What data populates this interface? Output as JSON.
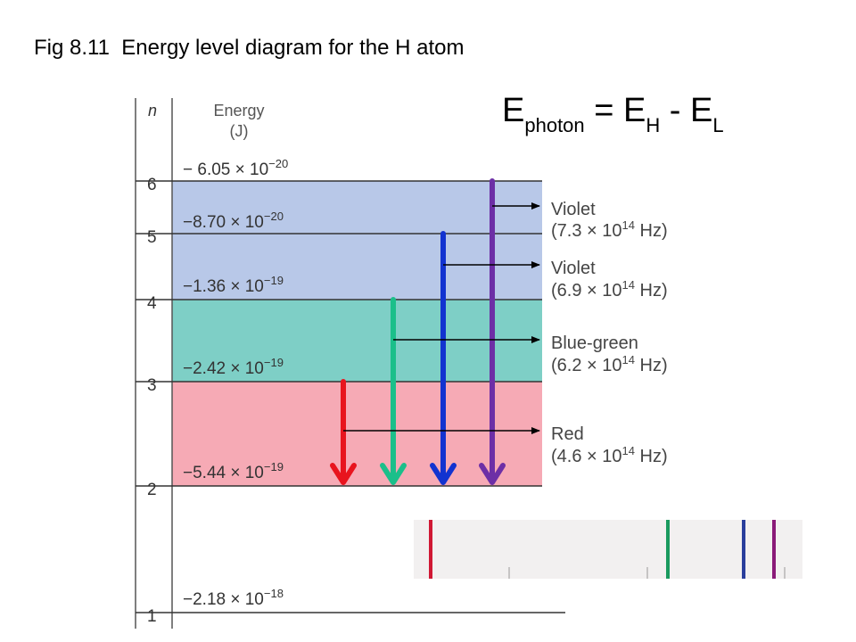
{
  "title": "Fig 8.11  Energy level diagram for the H atom",
  "equation": {
    "lhs": "E",
    "lhs_sub": "photon",
    "mid": " = E",
    "mid_sub": "H",
    "op": " - E",
    "rhs_sub": "L"
  },
  "axis": {
    "n_label": "n",
    "energy_label_line1": "Energy",
    "energy_label_line2": "(J)"
  },
  "levels": [
    {
      "n": "1",
      "energy": "−2.18 × 10",
      "exp": "−18"
    },
    {
      "n": "2",
      "energy": "−5.44 × 10",
      "exp": "−19"
    },
    {
      "n": "3",
      "energy": "−2.42 × 10",
      "exp": "−19"
    },
    {
      "n": "4",
      "energy": "−1.36 × 10",
      "exp": "−19"
    },
    {
      "n": "5",
      "energy": "−8.70 × 10",
      "exp": "−20"
    },
    {
      "n": "6",
      "energy": "− 6.05 × 10",
      "exp": "−20"
    }
  ],
  "transitions": [
    {
      "from": "3",
      "to": "2",
      "color_name": "Red",
      "freq": "(4.6 × 10",
      "freq_exp": "14",
      "freq_unit": " Hz)",
      "arrow_color": "#e8141e"
    },
    {
      "from": "4",
      "to": "2",
      "color_name": "Blue-green",
      "freq": "(6.2 × 10",
      "freq_exp": "14",
      "freq_unit": " Hz)",
      "arrow_color": "#1bbf8a"
    },
    {
      "from": "5",
      "to": "2",
      "color_name": "Violet",
      "freq": "(6.9 × 10",
      "freq_exp": "14",
      "freq_unit": " Hz)",
      "arrow_color": "#1233d0"
    },
    {
      "from": "6",
      "to": "2",
      "color_name": "Violet",
      "freq": "(7.3 × 10",
      "freq_exp": "14",
      "freq_unit": " Hz)",
      "arrow_color": "#6d2fa6"
    }
  ],
  "colors": {
    "band_top": "#b8c8e8",
    "band_mid": "#7ecfc6",
    "band_low": "#f6aab5",
    "spectrum_bg": "#f2f0f0",
    "line_red": "#d01834",
    "line_green": "#1a9a5e",
    "line_blue": "#2a3e9c",
    "line_violet": "#8a1a78"
  }
}
